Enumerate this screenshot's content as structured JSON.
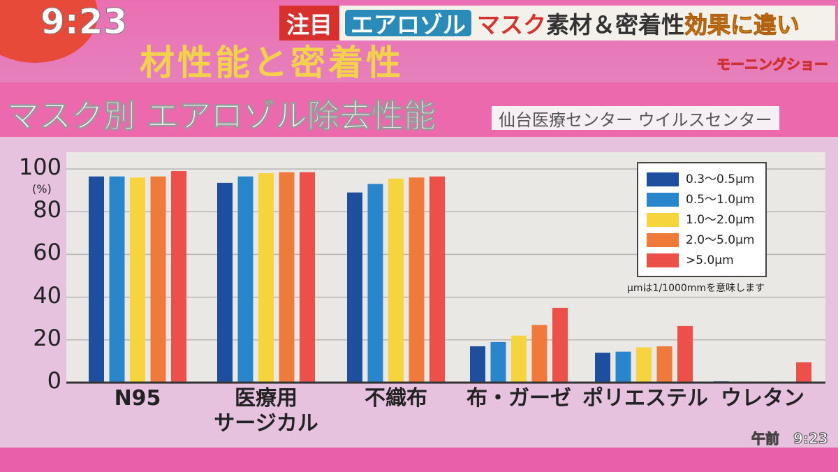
{
  "broadcast": {
    "clock": "9:23",
    "background_text": "材性能と密着性",
    "headline": {
      "tag": "注目",
      "topic": "エアロゾル",
      "part1": "マスク",
      "part2": "素材＆密着性",
      "part3": "効果に違い"
    },
    "show_name": "モーニングショー",
    "bottom_time": "午前　9:23"
  },
  "chart_data": {
    "type": "bar",
    "title": "マスク別 エアロゾル除去性能",
    "source": "仙台医療センター ウイルスセンター",
    "ylabel": "(%)",
    "ylim": [
      0,
      100
    ],
    "yticks": [
      0,
      20,
      40,
      60,
      80,
      100
    ],
    "grid": true,
    "legend_position": "top-right",
    "note": "μmは1/1000mmを意味します",
    "categories": [
      "N95",
      "医療用\nサージカル",
      "不織布",
      "布・ガーゼ",
      "ポリエステル",
      "ウレタン"
    ],
    "series": [
      {
        "name": "0.3〜0.5μm",
        "color": "#1e4f9e",
        "values": [
          96.5,
          93.5,
          89,
          17,
          14,
          0.6
        ]
      },
      {
        "name": "0.5〜1.0μm",
        "color": "#2a86cc",
        "values": [
          96.5,
          96.5,
          93,
          19,
          14.5,
          0.5
        ]
      },
      {
        "name": "1.0〜2.0μm",
        "color": "#f5d43e",
        "values": [
          96,
          98,
          95.5,
          22,
          16.5,
          0.3
        ]
      },
      {
        "name": "2.0〜5.0μm",
        "color": "#f07a3a",
        "values": [
          96.5,
          98.5,
          96,
          27,
          17,
          0.5
        ]
      },
      {
        "name": ">5.0μm",
        "color": "#ec5048",
        "values": [
          99,
          98.5,
          96.5,
          35,
          26.5,
          9.5
        ]
      }
    ]
  }
}
